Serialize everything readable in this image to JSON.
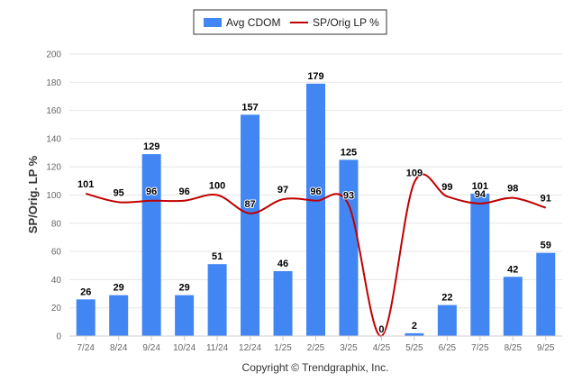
{
  "chart_data": {
    "type": "bar+line",
    "title": "",
    "xlabel": "",
    "ylabel": "SP/Orig. LP %",
    "ylim": [
      0,
      200
    ],
    "yticks": [
      0,
      20,
      40,
      60,
      80,
      100,
      120,
      140,
      160,
      180,
      200
    ],
    "grid": true,
    "legend_position": "top-center",
    "categories": [
      "7/24",
      "8/24",
      "9/24",
      "10/24",
      "11/24",
      "12/24",
      "1/25",
      "2/25",
      "3/25",
      "4/25",
      "5/25",
      "6/25",
      "7/25",
      "8/25",
      "9/25"
    ],
    "series": [
      {
        "name": "Avg CDOM",
        "kind": "bar",
        "color": "#4286f4",
        "values": [
          26,
          29,
          129,
          29,
          51,
          157,
          46,
          179,
          125,
          0,
          2,
          22,
          101,
          42,
          59
        ]
      },
      {
        "name": "SP/Orig LP %",
        "kind": "line",
        "color": "#c00000",
        "values": [
          101,
          95,
          96,
          96,
          100,
          87,
          97,
          96,
          93,
          0,
          109,
          99,
          94,
          98,
          91
        ]
      }
    ],
    "credit": "Copyright © Trendgraphix, Inc."
  }
}
